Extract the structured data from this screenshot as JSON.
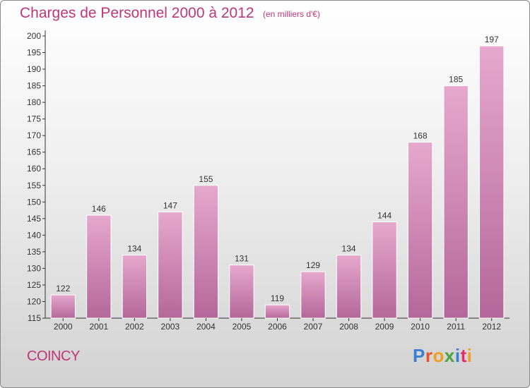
{
  "header": {
    "title": "Charges de Personnel 2000 à 2012",
    "subtitle": "(en milliers d'€)"
  },
  "footer": {
    "commune": "COINCY",
    "logo_text": "Proxiti",
    "logo_colors": [
      "#3b7fd0",
      "#e8542a",
      "#f0a020",
      "#4aa53c",
      "#3b7fd0",
      "#e0306a",
      "#f0a020"
    ]
  },
  "colors": {
    "accent": "#c0367a",
    "bar_fill": "#d98bb8",
    "bar_edge": "#ffffff"
  },
  "chart_data": {
    "type": "bar",
    "title": "Charges de Personnel 2000 à 2012",
    "subtitle": "(en milliers d'€)",
    "categories": [
      "2000",
      "2001",
      "2002",
      "2003",
      "2004",
      "2005",
      "2006",
      "2007",
      "2008",
      "2009",
      "2010",
      "2011",
      "2012"
    ],
    "values": [
      122,
      146,
      134,
      147,
      155,
      131,
      119,
      129,
      134,
      144,
      168,
      185,
      197
    ],
    "ylim": [
      115,
      200
    ],
    "yticks": [
      115,
      120,
      125,
      130,
      135,
      140,
      145,
      150,
      155,
      160,
      165,
      170,
      175,
      180,
      185,
      190,
      195,
      200
    ],
    "data_labels": true,
    "grid": false
  }
}
